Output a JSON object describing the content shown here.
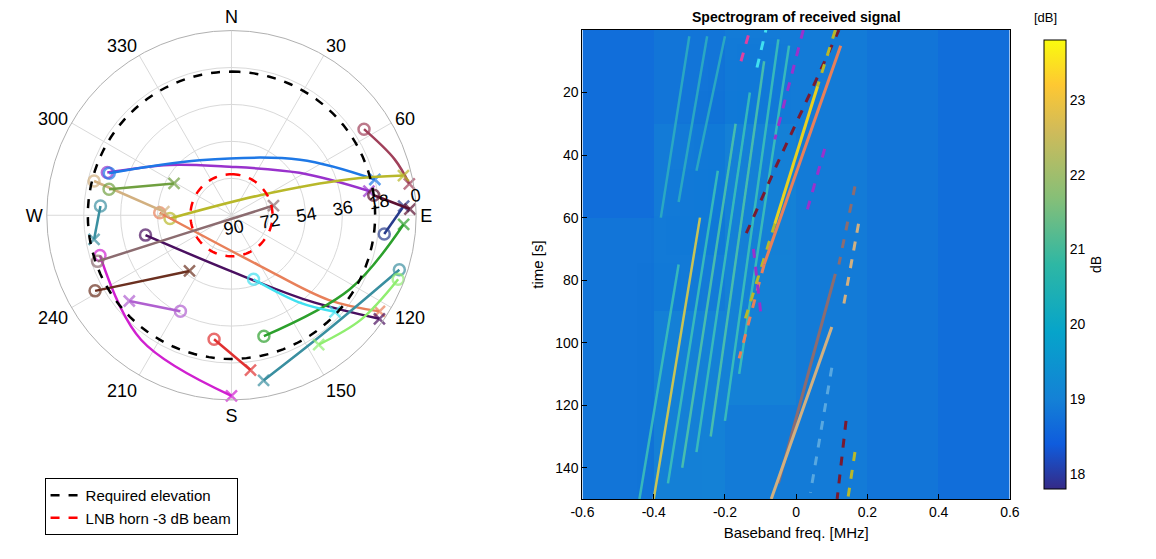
{
  "chart_data": [
    {
      "type": "polar",
      "rlim": [
        90,
        0
      ],
      "rticks": [
        0,
        18,
        36,
        54,
        72,
        90
      ],
      "thetaticks": [
        {
          "value": 0,
          "label": "N"
        },
        30,
        60,
        {
          "value": 90,
          "label": "E"
        },
        120,
        150,
        {
          "value": 180,
          "label": "S"
        },
        210,
        240,
        {
          "value": 270,
          "label": "W"
        },
        300,
        330
      ],
      "grid": true,
      "legend": "below",
      "series": [
        {
          "name": "Required elevation",
          "color": "#000000",
          "line_style": "dash",
          "elevation": 20
        },
        {
          "name": "LNB horn -3 dB beam",
          "color": "#ff0000",
          "line_style": "dash",
          "elevation": 70
        }
      ],
      "tracks": [
        {
          "color": "#9932cc",
          "azimuth": [
            289,
            309,
            352,
            58,
            80
          ],
          "elevation": [
            26,
            51,
            66,
            51,
            22
          ]
        },
        {
          "color": "#1e78e6",
          "azimuth": [
            289,
            330,
            51,
            76
          ],
          "elevation": [
            27,
            59,
            47,
            18
          ]
        },
        {
          "color": "#a0405a",
          "azimuth": [
            57,
            71,
            80
          ],
          "elevation": [
            13,
            6,
            2
          ]
        },
        {
          "color": "#b8b82a",
          "azimuth": [
            267,
            55,
            73,
            77
          ],
          "elevation": [
            60,
            73,
            30,
            4
          ]
        },
        {
          "color": "#e8805a",
          "azimuth": [
            272,
            151,
            131,
            123
          ],
          "elevation": [
            55,
            62,
            27,
            4
          ]
        },
        {
          "color": "#4a1060",
          "azimuth": [
            257,
            182,
            138,
            125
          ],
          "elevation": [
            47,
            63,
            34,
            2
          ]
        },
        {
          "color": "#283c8c",
          "azimuth": [
            97,
            87
          ],
          "elevation": [
            15,
            6
          ]
        },
        {
          "color": "#5a1030",
          "azimuth": [
            82,
            88
          ],
          "elevation": [
            20,
            3
          ]
        },
        {
          "color": "#2ca02c",
          "azimuth": [
            165,
            122,
            93
          ],
          "elevation": [
            29,
            22,
            6
          ]
        },
        {
          "color": "#40e0f0",
          "azimuth": [
            161,
            142,
            133
          ],
          "elevation": [
            57,
            36,
            21
          ]
        },
        {
          "color": "#3a8fa0",
          "azimuth": [
            108,
            140,
            169
          ],
          "elevation": [
            4,
            17,
            8
          ]
        },
        {
          "color": "#90ee70",
          "azimuth": [
            111,
            129,
            146
          ],
          "elevation": [
            3,
            9,
            14
          ]
        },
        {
          "color": "#d020d0",
          "azimuth": [
            253,
            216,
            180
          ],
          "elevation": [
            23,
            15,
            2
          ]
        },
        {
          "color": "#b060d0",
          "azimuth": [
            208,
            230
          ],
          "elevation": [
            37,
            25
          ]
        },
        {
          "color": "#6b3020",
          "azimuth": [
            241,
            217
          ],
          "elevation": [
            14,
            56
          ]
        },
        {
          "color": "#8c6c70",
          "azimuth": [
            251,
            249,
            77
          ],
          "elevation": [
            21,
            63,
            69
          ]
        },
        {
          "color": "#d2b080",
          "azimuth": [
            284,
            273
          ],
          "elevation": [
            21,
            57
          ]
        },
        {
          "color": "#70a040",
          "azimuth": [
            282,
            299
          ],
          "elevation": [
            29,
            58
          ]
        },
        {
          "color": "#3a8fa0",
          "azimuth": [
            274,
            260
          ],
          "elevation": [
            26,
            22
          ]
        },
        {
          "color": "#e03030",
          "azimuth": [
            188,
            173
          ],
          "elevation": [
            29,
            14
          ]
        }
      ]
    },
    {
      "type": "heatmap",
      "title": "Spectrogram of received signal",
      "xlabel": "Baseband freq. [MHz]",
      "ylabel": "time [s]",
      "xlim": [
        -0.6,
        0.6
      ],
      "xticks": [
        -0.6,
        -0.4,
        -0.2,
        0,
        0.2,
        0.4,
        0.6
      ],
      "ylim": [
        150,
        0
      ],
      "yticks": [
        20,
        40,
        60,
        80,
        100,
        120,
        140
      ],
      "cells": {
        "x": [
          -0.6,
          -0.4,
          -0.2,
          0,
          0.2,
          0.4,
          0.6
        ],
        "y": [
          0,
          30,
          60,
          90,
          120,
          150
        ],
        "z": [
          [
            18.7,
            18.8,
            18.9,
            18.9,
            18.8,
            18.7
          ],
          [
            18.7,
            18.9,
            19.0,
            18.9,
            18.8,
            18.7
          ],
          [
            18.8,
            18.9,
            19.0,
            18.9,
            18.8,
            18.7
          ],
          [
            18.8,
            19.0,
            19.0,
            18.9,
            18.8,
            18.7
          ],
          [
            18.8,
            19.0,
            18.9,
            18.9,
            18.8,
            18.7
          ]
        ]
      },
      "colorbar": {
        "title": "[dB]",
        "label": "dB",
        "range": [
          17.8,
          23.8
        ],
        "ticks": [
          18,
          19,
          20,
          21,
          22,
          23
        ]
      },
      "streaks": [
        {
          "color": "#3fc4b8",
          "x": [
            -0.44,
            -0.33
          ],
          "y": [
            150,
            75
          ]
        },
        {
          "color": "#e8d040",
          "x": [
            -0.4,
            -0.27
          ],
          "y": [
            150,
            60
          ]
        },
        {
          "color": "#3fc4b8",
          "x": [
            -0.36,
            -0.22
          ],
          "y": [
            145,
            45
          ]
        },
        {
          "color": "#52c8a8",
          "x": [
            -0.32,
            -0.17
          ],
          "y": [
            140,
            30
          ]
        },
        {
          "color": "#3fc4b8",
          "x": [
            -0.28,
            -0.13
          ],
          "y": [
            135,
            20
          ]
        },
        {
          "color": "#52c8a8",
          "x": [
            -0.24,
            -0.09
          ],
          "y": [
            130,
            10
          ]
        },
        {
          "color": "#3fc4b8",
          "x": [
            -0.2,
            -0.05
          ],
          "y": [
            125,
            3
          ]
        },
        {
          "color": "#3fc4b8",
          "x": [
            -0.16,
            -0.02
          ],
          "y": [
            110,
            5
          ]
        },
        {
          "color": "#2fb0c0",
          "x": [
            -0.38,
            -0.3
          ],
          "y": [
            60,
            2
          ]
        },
        {
          "color": "#2fb0c0",
          "x": [
            -0.33,
            -0.25
          ],
          "y": [
            55,
            2
          ]
        },
        {
          "color": "#2fb0c0",
          "x": [
            -0.28,
            -0.2
          ],
          "y": [
            45,
            2
          ]
        }
      ],
      "series": [
        {
          "color": "#e040a0",
          "line_style": "dash",
          "x": [
            -0.155,
            -0.13
          ],
          "y": [
            10,
            0
          ]
        },
        {
          "color": "#40e0f0",
          "line_style": "dash",
          "x": [
            -0.11,
            -0.085
          ],
          "y": [
            12,
            0
          ]
        },
        {
          "color": "#7a1a30",
          "line_style": "dash",
          "x": [
            -0.14,
            -0.05,
            0.04,
            0.12
          ],
          "y": [
            65,
            42,
            20,
            0
          ]
        },
        {
          "color": "#b8b82a",
          "line_style": "dash",
          "x": [
            0.11,
            0.06
          ],
          "y": [
            0,
            18
          ]
        },
        {
          "color": "#e8d020",
          "line_style": "solid",
          "x": [
            0.06,
            -0.06
          ],
          "y": [
            18,
            62
          ]
        },
        {
          "color": "#b8b82a",
          "line_style": "dash",
          "x": [
            -0.06,
            -0.15
          ],
          "y": [
            62,
            95
          ]
        },
        {
          "color": "#e8805a",
          "line_style": "solid",
          "x": [
            0.125,
            -0.09
          ],
          "y": [
            5,
            75
          ]
        },
        {
          "color": "#e8805a",
          "line_style": "dash",
          "x": [
            -0.09,
            -0.16
          ],
          "y": [
            75,
            105
          ]
        },
        {
          "color": "#9932cc",
          "line_style": "dash",
          "x": [
            0.02,
            -0.06
          ],
          "y": [
            0,
            35
          ]
        },
        {
          "color": "#9932cc",
          "line_style": "dash",
          "x": [
            0.08,
            0.03
          ],
          "y": [
            38,
            58
          ]
        },
        {
          "color": "#9932cc",
          "line_style": "dash",
          "x": [
            -0.12,
            -0.1
          ],
          "y": [
            70,
            90
          ]
        },
        {
          "color": "#8c6c70",
          "line_style": "dash",
          "x": [
            0.165,
            0.12
          ],
          "y": [
            50,
            75
          ]
        },
        {
          "color": "#8c6c70",
          "line_style": "solid",
          "x": [
            0.11,
            -0.05
          ],
          "y": [
            78,
            145
          ]
        },
        {
          "color": "#d2b080",
          "line_style": "dash",
          "x": [
            0.175,
            0.13
          ],
          "y": [
            62,
            90
          ]
        },
        {
          "color": "#d2b080",
          "line_style": "solid",
          "x": [
            0.1,
            -0.07
          ],
          "y": [
            95,
            150
          ]
        },
        {
          "color": "#58a8e0",
          "line_style": "dash",
          "x": [
            0.1,
            0.04
          ],
          "y": [
            108,
            148
          ]
        },
        {
          "color": "#7a1a30",
          "line_style": "dash",
          "x": [
            0.14,
            0.115
          ],
          "y": [
            125,
            150
          ]
        },
        {
          "color": "#b8b82a",
          "line_style": "dash",
          "x": [
            0.165,
            0.145
          ],
          "y": [
            135,
            150
          ]
        }
      ]
    }
  ]
}
